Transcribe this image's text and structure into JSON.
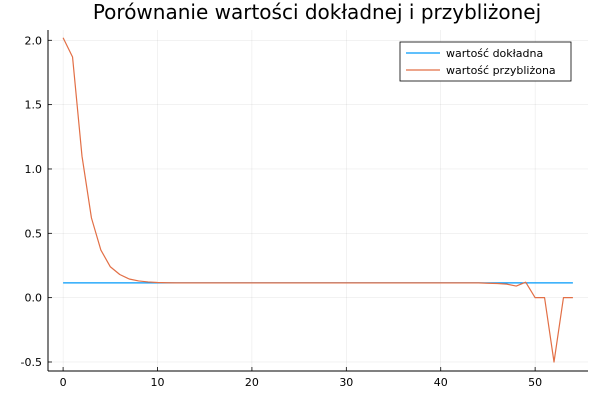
{
  "chart_data": {
    "type": "line",
    "title": "Porównanie wartości dokładnej i przybliżonej",
    "xlabel": "",
    "ylabel": "",
    "xlim": [
      -1.6,
      55.6
    ],
    "ylim": [
      -0.57,
      2.08
    ],
    "xticks": [
      0,
      10,
      20,
      30,
      40,
      50
    ],
    "yticks": [
      -0.5,
      0.0,
      0.5,
      1.0,
      1.5,
      2.0
    ],
    "xtick_labels": [
      "0",
      "10",
      "20",
      "30",
      "40",
      "50"
    ],
    "ytick_labels": [
      "-0.5",
      "0.0",
      "0.5",
      "1.0",
      "1.5",
      "2.0"
    ],
    "grid": true,
    "legend_position": "top-right",
    "series": [
      {
        "name": "wartość dokładna",
        "color": "#009AFA",
        "x": [
          0,
          54
        ],
        "y": [
          0.115,
          0.115
        ]
      },
      {
        "name": "wartość przybliżona",
        "color": "#E26F46",
        "x": [
          0,
          1,
          2,
          3,
          4,
          5,
          6,
          7,
          8,
          9,
          10,
          11,
          12,
          13,
          14,
          15,
          16,
          17,
          18,
          19,
          20,
          21,
          22,
          23,
          24,
          25,
          26,
          27,
          28,
          29,
          30,
          31,
          32,
          33,
          34,
          35,
          36,
          37,
          38,
          39,
          40,
          41,
          42,
          43,
          44,
          45,
          46,
          47,
          48,
          49,
          50,
          51,
          52,
          53,
          54
        ],
        "y": [
          2.02,
          1.87,
          1.1,
          0.62,
          0.37,
          0.24,
          0.18,
          0.145,
          0.13,
          0.122,
          0.118,
          0.116,
          0.115,
          0.115,
          0.115,
          0.115,
          0.115,
          0.115,
          0.115,
          0.115,
          0.115,
          0.115,
          0.115,
          0.115,
          0.115,
          0.115,
          0.115,
          0.115,
          0.115,
          0.115,
          0.115,
          0.115,
          0.115,
          0.115,
          0.115,
          0.115,
          0.115,
          0.115,
          0.115,
          0.115,
          0.115,
          0.115,
          0.115,
          0.115,
          0.115,
          0.112,
          0.11,
          0.105,
          0.09,
          0.12,
          0.0,
          0.0,
          -0.5,
          0.0,
          0.0
        ]
      }
    ]
  }
}
